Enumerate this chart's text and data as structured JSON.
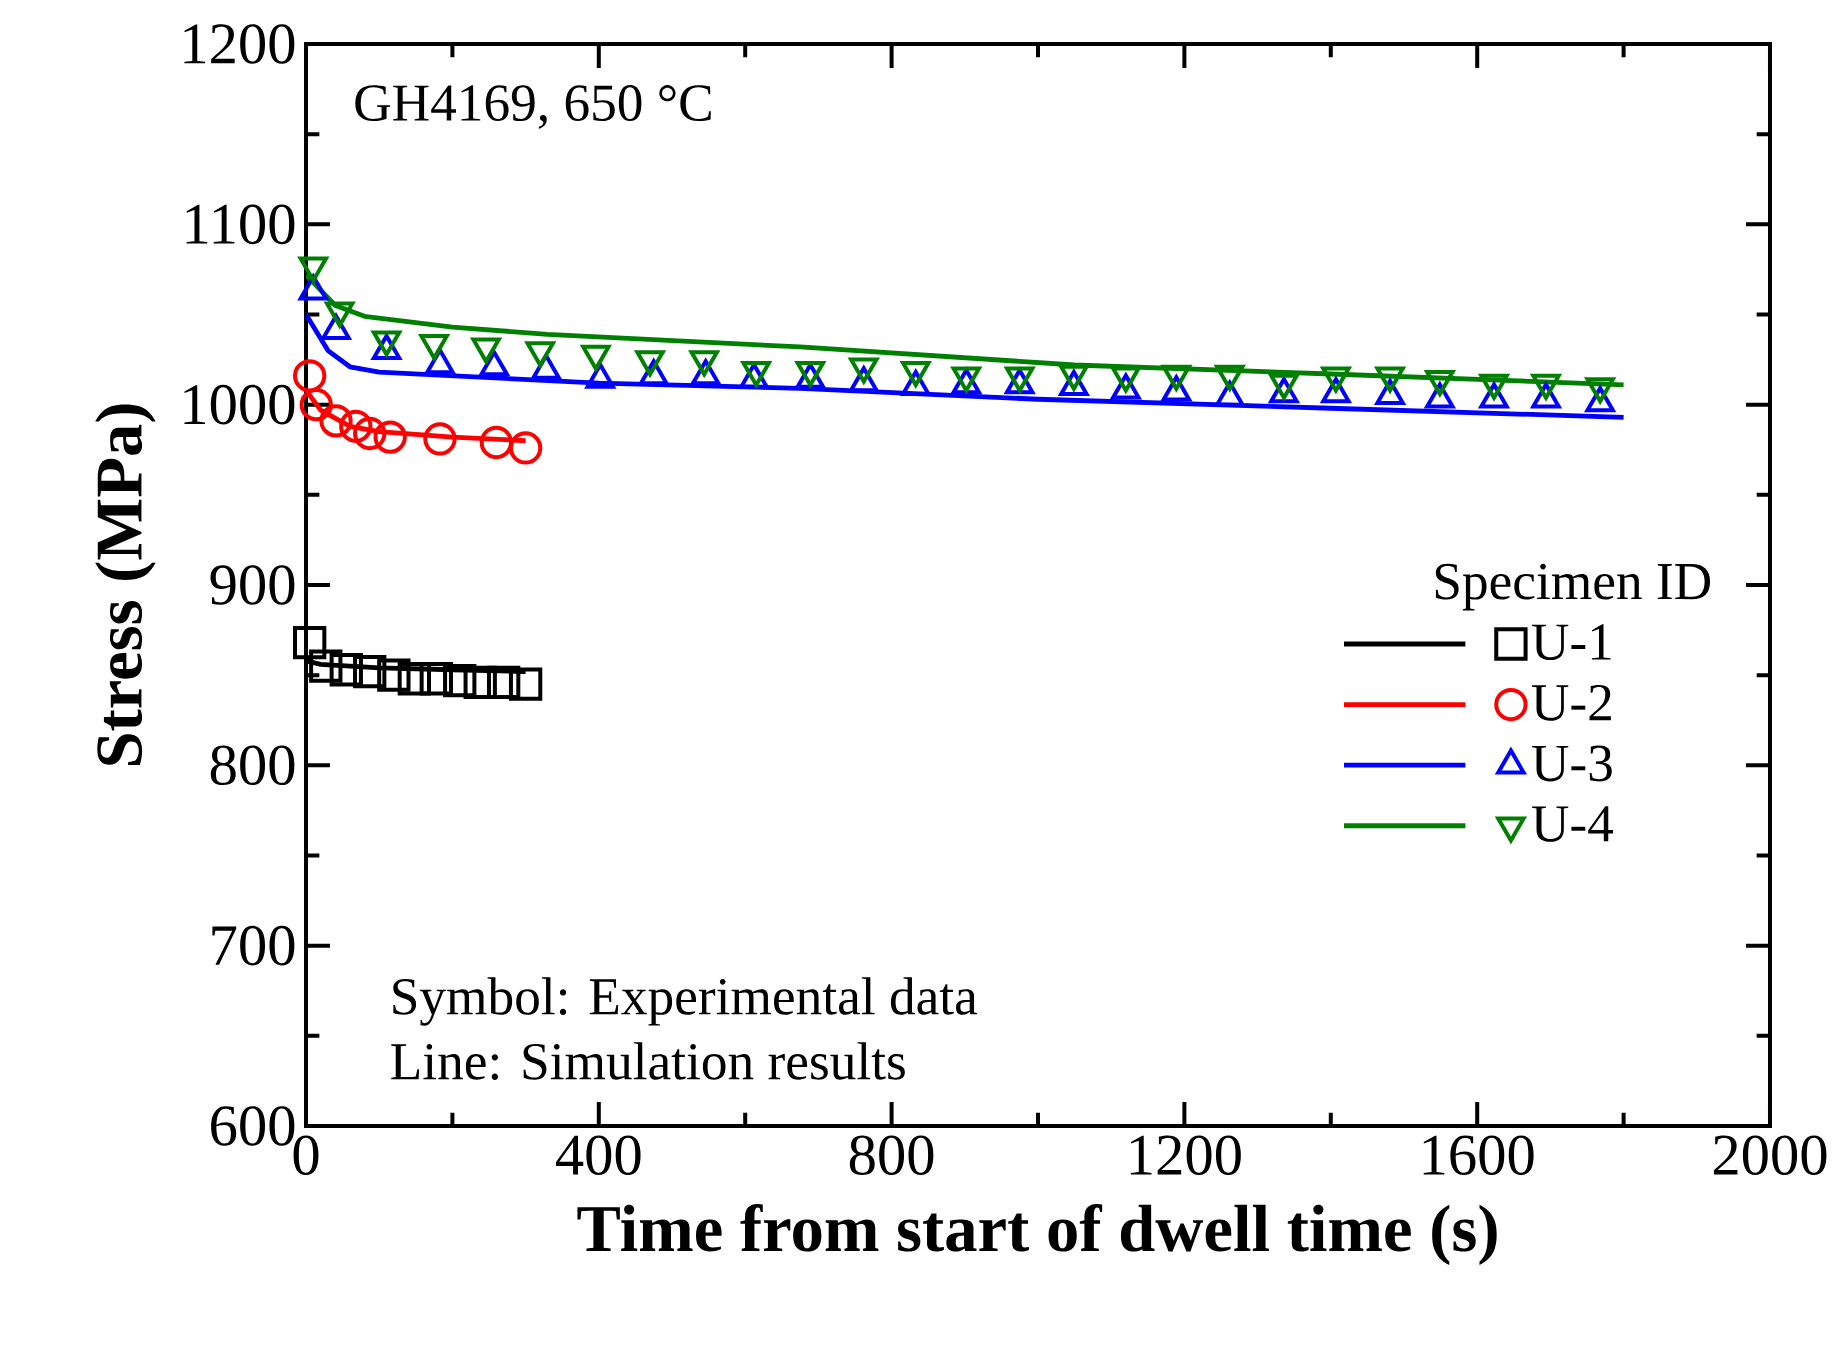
{
  "chart_data": {
    "type": "scatter",
    "xlabel": "Time from start of dwell time (s)",
    "ylabel": "Stress (MPa)",
    "legend_title": "Specimen ID",
    "legend": "right",
    "xlim": [
      0,
      2000
    ],
    "ylim": [
      600,
      1200
    ],
    "xticks": [
      0,
      400,
      800,
      1200,
      1600,
      2000
    ],
    "yticks": [
      600,
      700,
      800,
      900,
      1000,
      1100,
      1200
    ],
    "grid": false,
    "annotations": [
      "GH4169, 650 °C",
      "Symbol: Experimental data",
      "Line: Simulation results"
    ],
    "series": [
      {
        "type": "scatter",
        "name": "U-1",
        "color": "#000000",
        "marker": "square",
        "x": [
          5,
          27,
          55,
          87,
          120,
          148,
          178,
          210,
          238,
          270,
          300
        ],
        "values": [
          868,
          855,
          853,
          852,
          850,
          848,
          848,
          847,
          846,
          846,
          845
        ]
      },
      {
        "type": "line",
        "color": "#000000",
        "line_style": "solid",
        "x": [
          0,
          20,
          100,
          200,
          300
        ],
        "values": [
          858,
          856,
          854,
          853,
          852
        ]
      },
      {
        "type": "scatter",
        "name": "U-2",
        "color": "#ff0000",
        "marker": "circle",
        "x": [
          5,
          14,
          41,
          68,
          87,
          115,
          183,
          260,
          300
        ],
        "values": [
          1016,
          1000,
          991,
          988,
          984,
          982,
          981,
          979,
          976
        ]
      },
      {
        "type": "line",
        "color": "#ff0000",
        "line_style": "solid",
        "x": [
          0,
          20,
          60,
          100,
          200,
          300
        ],
        "values": [
          1008,
          997,
          988,
          985,
          982,
          980
        ]
      },
      {
        "type": "scatter",
        "name": "U-3",
        "color": "#0000ff",
        "marker": "triangle",
        "x": [
          10,
          41,
          110,
          183,
          257,
          328,
          402,
          475,
          546,
          612,
          689,
          762,
          833,
          902,
          975,
          1049,
          1120,
          1189,
          1262,
          1336,
          1407,
          1481,
          1549,
          1623,
          1694,
          1768
        ],
        "values": [
          1063,
          1041,
          1030,
          1022,
          1021,
          1019,
          1014,
          1016,
          1016,
          1014,
          1014,
          1012,
          1010,
          1011,
          1011,
          1010,
          1008,
          1007,
          1004,
          1006,
          1006,
          1005,
          1003,
          1003,
          1003,
          1001
        ]
      },
      {
        "type": "line",
        "color": "#0000ff",
        "line_style": "solid",
        "x": [
          0,
          30,
          60,
          100,
          200,
          400,
          675,
          1000,
          1400,
          1800
        ],
        "values": [
          1050,
          1030,
          1021,
          1018,
          1016,
          1012,
          1009,
          1003,
          998,
          993
        ]
      },
      {
        "type": "scatter",
        "name": "U-4",
        "color": "#008000",
        "marker": "triangle-down",
        "x": [
          10,
          46,
          110,
          175,
          246,
          320,
          396,
          470,
          544,
          615,
          689,
          762,
          833,
          902,
          975,
          1049,
          1120,
          1189,
          1262,
          1336,
          1407,
          1481,
          1549,
          1623,
          1694,
          1768
        ],
        "values": [
          1077,
          1052,
          1036,
          1034,
          1032,
          1030,
          1028,
          1025,
          1025,
          1019,
          1019,
          1021,
          1019,
          1016,
          1016,
          1017,
          1016,
          1017,
          1017,
          1012,
          1016,
          1016,
          1014,
          1012,
          1012,
          1010
        ]
      },
      {
        "type": "line",
        "color": "#008000",
        "line_style": "solid",
        "x": [
          0,
          40,
          80,
          200,
          330,
          675,
          1050,
          1400,
          1800
        ],
        "values": [
          1072,
          1055,
          1049,
          1043,
          1039,
          1032,
          1022,
          1017,
          1011
        ]
      }
    ]
  }
}
